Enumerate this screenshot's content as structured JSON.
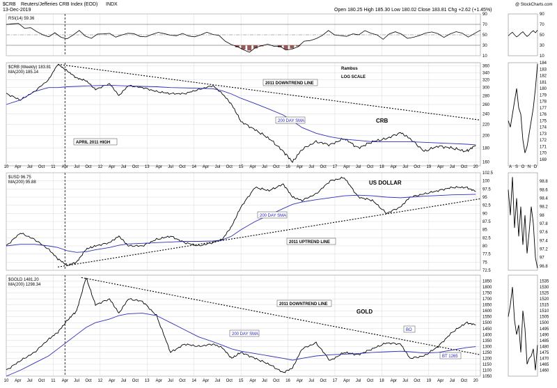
{
  "header": {
    "symbol": "$CRB",
    "name": "Reuters/Jefferies CRB Index (EOD)",
    "exchange": "INDX",
    "date": "13-Dec-2019",
    "quote": "Open 180.25  High 185.30  Low 180.02  Close 183.81  Chg +2.62 (+1.45%)",
    "watermark": "@ StockCharts.com"
  },
  "chart_data": [
    {
      "type": "line",
      "name": "rsi-panel",
      "legend": "RSI(14) 59.36",
      "ylim": [
        10,
        90
      ],
      "y_ticks": [
        90,
        70,
        50,
        30,
        10
      ],
      "bands": [
        30,
        70
      ],
      "weekly_values": [
        68,
        70,
        72,
        66,
        62,
        55,
        50,
        48,
        52,
        46,
        44,
        50,
        55,
        48,
        45,
        52,
        50,
        54,
        46,
        48,
        52,
        55,
        48,
        44,
        50,
        56,
        52,
        48,
        50,
        54,
        46,
        44,
        52,
        56,
        50,
        48,
        40,
        30,
        26,
        22,
        20,
        24,
        28,
        32,
        30,
        26,
        22,
        24,
        28,
        34,
        40,
        44,
        50,
        56,
        52,
        48,
        46,
        50,
        54,
        58,
        52,
        48,
        44,
        50,
        56,
        52,
        46,
        42,
        48,
        54,
        58,
        50,
        46,
        52,
        56,
        50,
        48,
        54,
        59
      ],
      "daily_values": [
        48,
        52,
        55,
        50,
        46,
        49,
        53,
        56,
        51,
        47,
        50,
        55,
        58,
        54,
        59
      ]
    },
    {
      "type": "line",
      "name": "crb-panel",
      "legend": "$CRB (Weekly) 183.81",
      "ma_legend": "MA(200) 185.14",
      "scale": "log",
      "scale_label": "LOG SCALE",
      "title": "CRB",
      "author": "Rambus",
      "ylim": [
        155,
        370
      ],
      "y_ticks": [
        360,
        340,
        320,
        300,
        280,
        260,
        240,
        220,
        200,
        180,
        160
      ],
      "x": [
        2010.0,
        2010.3,
        2010.6,
        2010.9,
        2011.1,
        2011.3,
        2011.5,
        2011.7,
        2011.9,
        2012.2,
        2012.4,
        2012.6,
        2012.9,
        2013.2,
        2013.5,
        2013.8,
        2014.1,
        2014.4,
        2014.6,
        2014.8,
        2015.0,
        2015.3,
        2015.6,
        2015.9,
        2016.1,
        2016.3,
        2016.6,
        2016.9,
        2017.2,
        2017.5,
        2017.8,
        2018.1,
        2018.4,
        2018.6,
        2018.9,
        2019.2,
        2019.5,
        2019.8,
        2020.0
      ],
      "values": [
        285,
        270,
        290,
        320,
        365,
        345,
        325,
        318,
        295,
        310,
        280,
        305,
        300,
        290,
        285,
        285,
        295,
        305,
        285,
        260,
        225,
        210,
        195,
        175,
        160,
        178,
        190,
        185,
        195,
        180,
        190,
        195,
        205,
        195,
        175,
        183,
        180,
        175,
        184
      ],
      "ma200": [
        260,
        270,
        290,
        300,
        300,
        302,
        303,
        304,
        305,
        306,
        305,
        304,
        303,
        302,
        300,
        299,
        298,
        297,
        292,
        284,
        274,
        262,
        250,
        238,
        226,
        214,
        204,
        198,
        194,
        192,
        190,
        190,
        190,
        190,
        189,
        188,
        187,
        186,
        185
      ],
      "ma_label": "200 DAY SMA",
      "trendline_label": "2011 DOWNTREND LINE",
      "trendline": {
        "x": [
          2011.1,
          2020.1
        ],
        "y": [
          365,
          228
        ]
      },
      "marker_label": "APRIL 2011 HIGH",
      "marker_x": 2011.1,
      "daily_ylim": [
        168,
        184
      ],
      "daily_ticks": [
        184,
        183,
        182,
        181,
        180,
        179,
        178,
        177,
        176,
        175,
        174,
        173,
        172,
        171,
        170,
        169
      ],
      "daily_values": [
        175,
        174,
        176,
        178,
        180,
        177,
        176,
        172,
        170,
        171,
        173,
        175,
        177,
        180,
        183.81
      ],
      "daily_months": [
        "A",
        "S",
        "O",
        "N",
        "D"
      ],
      "x_tick_labels": [
        "10",
        "Apr",
        "Jul",
        "Oct",
        "11",
        "Apr",
        "Jul",
        "Oct",
        "12",
        "Apr",
        "Jul",
        "Oct",
        "13",
        "Apr",
        "Jul",
        "Oct",
        "14",
        "Apr",
        "Jul",
        "Oct",
        "15",
        "Apr",
        "Jul",
        "Oct",
        "16",
        "Apr",
        "Jul",
        "Oct",
        "17",
        "Apr",
        "Jul",
        "Oct",
        "18",
        "Apr",
        "Jul",
        "Oct",
        "19",
        "Apr",
        "Jul",
        "Oct",
        "20"
      ]
    },
    {
      "type": "line",
      "name": "usd-panel",
      "legend": "$USD 96.75",
      "ma_legend": "MA(200) 95.88",
      "title": "US DOLLAR",
      "ylim": [
        72.5,
        102.5
      ],
      "y_ticks": [
        102.5,
        100.0,
        97.5,
        95.0,
        92.5,
        90.0,
        87.5,
        85.0,
        82.5,
        80.0,
        77.5,
        75.0,
        72.5
      ],
      "x": [
        2010.0,
        2010.3,
        2010.6,
        2010.9,
        2011.1,
        2011.3,
        2011.5,
        2011.7,
        2011.9,
        2012.2,
        2012.4,
        2012.6,
        2012.9,
        2013.2,
        2013.5,
        2013.8,
        2014.1,
        2014.4,
        2014.6,
        2014.8,
        2015.0,
        2015.3,
        2015.6,
        2015.9,
        2016.1,
        2016.3,
        2016.6,
        2016.9,
        2017.2,
        2017.5,
        2017.8,
        2018.1,
        2018.4,
        2018.6,
        2018.9,
        2019.2,
        2019.5,
        2019.8,
        2020.0
      ],
      "values": [
        80,
        84,
        82,
        79,
        76,
        74,
        75,
        79,
        80,
        81,
        83,
        80,
        80,
        82,
        83,
        81,
        80,
        81,
        82,
        86,
        92,
        98,
        97,
        99,
        95,
        94,
        96,
        100,
        101,
        95,
        94,
        90,
        92,
        95,
        96,
        97,
        98,
        98,
        96.75
      ],
      "ma200": [
        80,
        80.5,
        80.5,
        80,
        79.5,
        78.5,
        78,
        78.2,
        78.8,
        79.5,
        80.2,
        80.6,
        80.8,
        81,
        81.2,
        81.4,
        81.4,
        81.5,
        81.8,
        83,
        85,
        87.5,
        89.5,
        91.5,
        92.8,
        93.5,
        94.2,
        94.8,
        95.4,
        95.6,
        95.4,
        95.0,
        94.8,
        95.0,
        95.3,
        95.5,
        95.7,
        95.8,
        95.88
      ],
      "ma_label": "200 DAY SMA",
      "trendline_label": "2011 UPTREND LINE",
      "trendline": {
        "x": [
          2011.1,
          2020.1
        ],
        "y": [
          73.5,
          94.5
        ]
      },
      "daily_ylim": [
        96.7,
        99.0
      ],
      "daily_ticks": [
        98.8,
        98.6,
        98.4,
        98.2,
        98.0,
        97.8,
        97.6,
        97.4,
        97.2,
        97.0,
        96.8
      ],
      "daily_values": [
        98.6,
        98.0,
        98.9,
        97.7,
        98.4,
        97.5,
        98.2,
        97.3,
        98.0,
        97.1,
        97.6,
        98.2,
        97.8,
        97.0,
        96.75
      ]
    },
    {
      "type": "line",
      "name": "gold-panel",
      "legend": "$GOLD 1481.20",
      "ma_legend": "MA(200) 1298.34",
      "title": "GOLD",
      "ylim": [
        1050,
        1900
      ],
      "y_ticks": [
        1850,
        1800,
        1750,
        1700,
        1650,
        1600,
        1550,
        1500,
        1450,
        1400,
        1350,
        1300,
        1250,
        1200,
        1150,
        1100,
        1050
      ],
      "x": [
        2010.0,
        2010.3,
        2010.6,
        2010.9,
        2011.1,
        2011.3,
        2011.5,
        2011.7,
        2011.9,
        2012.2,
        2012.4,
        2012.6,
        2012.9,
        2013.2,
        2013.5,
        2013.8,
        2014.1,
        2014.4,
        2014.6,
        2014.8,
        2015.0,
        2015.3,
        2015.6,
        2015.9,
        2016.1,
        2016.3,
        2016.6,
        2016.9,
        2017.2,
        2017.5,
        2017.8,
        2018.1,
        2018.4,
        2018.6,
        2018.9,
        2019.2,
        2019.5,
        2019.8,
        2020.0
      ],
      "values": [
        1100,
        1180,
        1250,
        1360,
        1420,
        1520,
        1600,
        1880,
        1650,
        1700,
        1580,
        1700,
        1680,
        1560,
        1250,
        1320,
        1300,
        1320,
        1290,
        1200,
        1250,
        1200,
        1150,
        1080,
        1120,
        1280,
        1330,
        1180,
        1250,
        1230,
        1280,
        1330,
        1320,
        1200,
        1220,
        1300,
        1420,
        1500,
        1481.2
      ],
      "ma200": [
        1050,
        1100,
        1160,
        1220,
        1280,
        1340,
        1400,
        1460,
        1500,
        1530,
        1560,
        1575,
        1580,
        1560,
        1500,
        1440,
        1380,
        1340,
        1310,
        1280,
        1260,
        1240,
        1220,
        1200,
        1185,
        1200,
        1220,
        1230,
        1235,
        1240,
        1250,
        1255,
        1260,
        1255,
        1245,
        1250,
        1270,
        1290,
        1298.34
      ],
      "ma_label": "200 DAY SMA",
      "trendline_label": "2011 DOWNTREND LINE",
      "trendline": {
        "x": [
          2011.6,
          2020.1
        ],
        "y": [
          1880,
          1230
        ]
      },
      "bo_label": "BO",
      "bt_label": "BT 1265",
      "daily_ylim": [
        1455,
        1540
      ],
      "daily_ticks": [
        1535,
        1530,
        1525,
        1520,
        1515,
        1510,
        1505,
        1500,
        1495,
        1490,
        1485,
        1480,
        1475,
        1470,
        1465,
        1460
      ],
      "daily_values": [
        1505,
        1515,
        1530,
        1502,
        1490,
        1498,
        1475,
        1510,
        1495,
        1465,
        1470,
        1472,
        1478,
        1460,
        1481.2
      ]
    }
  ],
  "colors": {
    "price": "#000000",
    "ma": "#2e2eb8",
    "rsi_fill": "#8b3a3a",
    "grid": "#cfcfcf",
    "trend": "#000000",
    "annotation_blue": "#1f1fbf"
  }
}
